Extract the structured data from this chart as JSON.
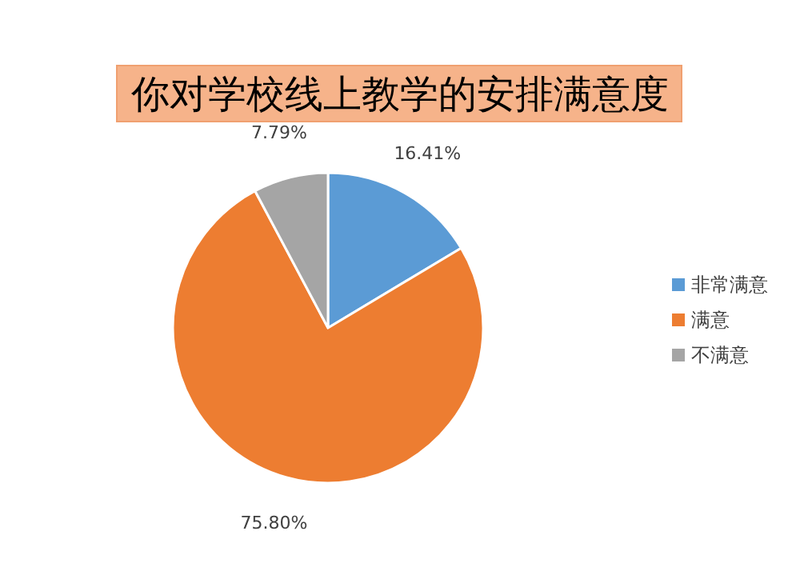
{
  "chart_data": {
    "type": "pie",
    "title": "你对学校线上教学的安排满意度",
    "categories": [
      "非常满意",
      "满意",
      "不满意"
    ],
    "values": [
      16.41,
      75.8,
      7.79
    ],
    "colors": [
      "#5b9bd5",
      "#ed7d31",
      "#a5a5a5"
    ],
    "value_labels": [
      "16.41%",
      "75.80%",
      "7.79%"
    ],
    "legend": "right"
  }
}
